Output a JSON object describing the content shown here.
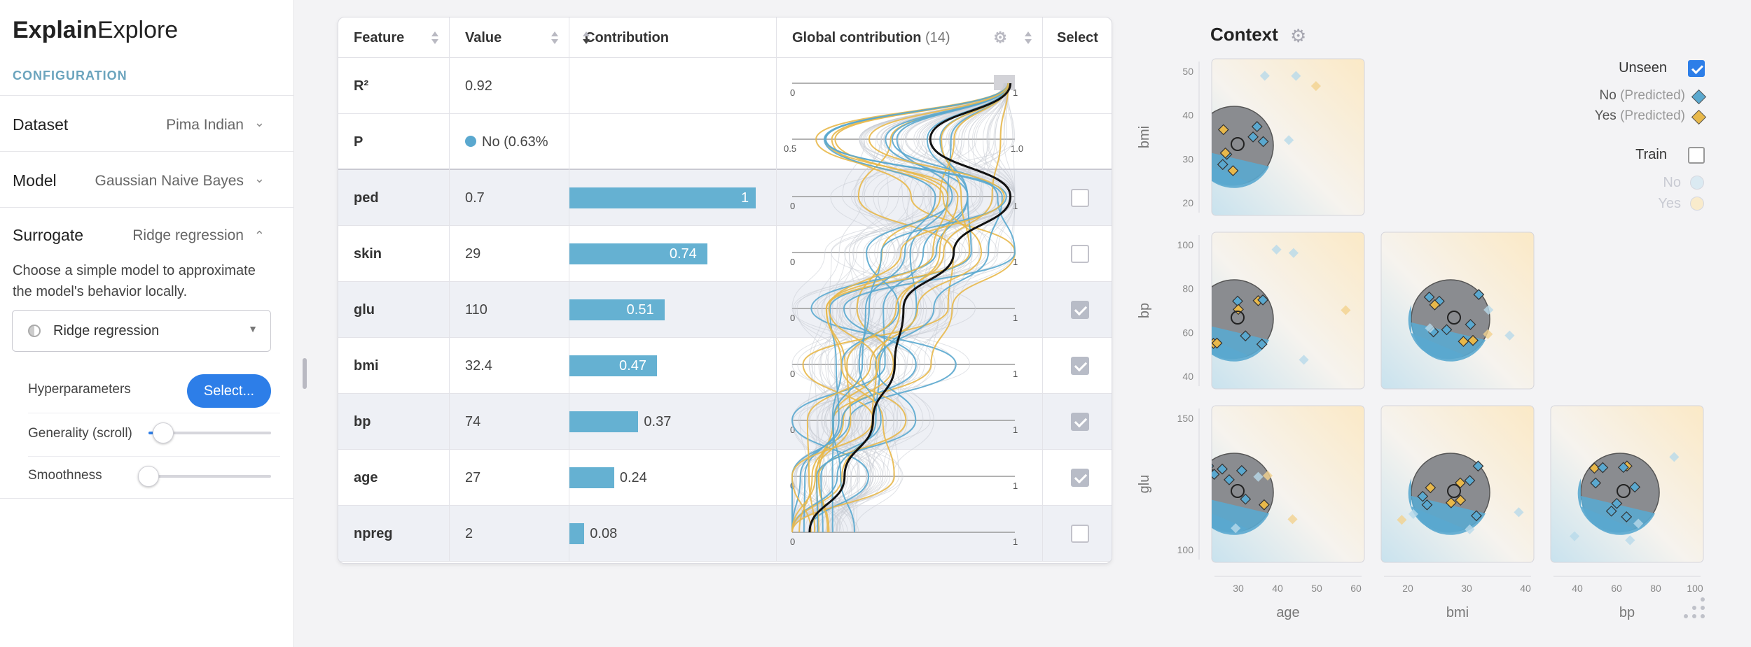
{
  "app": {
    "title_bold": "Explain",
    "title_light": "Explore"
  },
  "sidebar": {
    "section_label": "CONFIGURATION",
    "dataset": {
      "label": "Dataset",
      "value": "Pima Indian"
    },
    "model": {
      "label": "Model",
      "value": "Gaussian Naive Bayes"
    },
    "surrogate": {
      "label": "Surrogate",
      "value": "Ridge regression",
      "description": "Choose a simple model to approximate the model's behavior locally.",
      "dropdown_value": "Ridge regression",
      "hyperparameters_label": "Hyperparameters",
      "select_button": "Select...",
      "generality_label": "Generality (scroll)",
      "generality_value": 0.12,
      "smoothness_label": "Smoothness",
      "smoothness_value": 0.0
    }
  },
  "table": {
    "headers": {
      "feature": "Feature",
      "value": "Value",
      "contribution": "Contribution",
      "global": "Global contribution",
      "global_count": "(14)",
      "select": "Select"
    },
    "summary": [
      {
        "feature": "R²",
        "value": "0.92"
      },
      {
        "feature": "P",
        "value": "No (0.63%"
      }
    ],
    "rows": [
      {
        "feature": "ped",
        "value": "0.7",
        "contribution": 1,
        "contribution_label": "1",
        "selected": false
      },
      {
        "feature": "skin",
        "value": "29",
        "contribution": 0.74,
        "contribution_label": "0.74",
        "selected": false
      },
      {
        "feature": "glu",
        "value": "110",
        "contribution": 0.51,
        "contribution_label": "0.51",
        "selected": true
      },
      {
        "feature": "bmi",
        "value": "32.4",
        "contribution": 0.47,
        "contribution_label": "0.47",
        "selected": true
      },
      {
        "feature": "bp",
        "value": "74",
        "contribution": 0.37,
        "contribution_label": "0.37",
        "selected": true
      },
      {
        "feature": "age",
        "value": "27",
        "contribution": 0.24,
        "contribution_label": "0.24",
        "selected": true
      },
      {
        "feature": "npreg",
        "value": "2",
        "contribution": 0.08,
        "contribution_label": "0.08",
        "selected": false
      }
    ],
    "axis_min_label": "0",
    "axis_max_label": "1",
    "p_axis_min_label": "0.5",
    "p_axis_max_label": "1.0"
  },
  "context": {
    "title": "Context",
    "legend": {
      "unseen_label": "Unseen",
      "unseen_checked": true,
      "no_predicted": "No",
      "yes_predicted": "Yes",
      "predicted_suffix": "(Predicted)",
      "train_label": "Train",
      "train_checked": false,
      "train_no": "No",
      "train_yes": "Yes"
    },
    "axes": {
      "y": [
        {
          "name": "bmi",
          "ticks": [
            "50",
            "40",
            "30",
            "20"
          ]
        },
        {
          "name": "bp",
          "ticks": [
            "100",
            "80",
            "60",
            "40"
          ]
        },
        {
          "name": "glu",
          "ticks": [
            "150",
            "100"
          ]
        }
      ],
      "x": [
        {
          "name": "age",
          "ticks": [
            "30",
            "40",
            "50",
            "60"
          ]
        },
        {
          "name": "bmi",
          "ticks": [
            "20",
            "30",
            "40"
          ]
        },
        {
          "name": "bp",
          "ticks": [
            "40",
            "60",
            "80",
            "100"
          ]
        }
      ]
    }
  },
  "colors": {
    "no": "#5aa8cf",
    "yes": "#e8b84a",
    "accent": "#2d7ee8",
    "bar": "#65b1d2"
  }
}
